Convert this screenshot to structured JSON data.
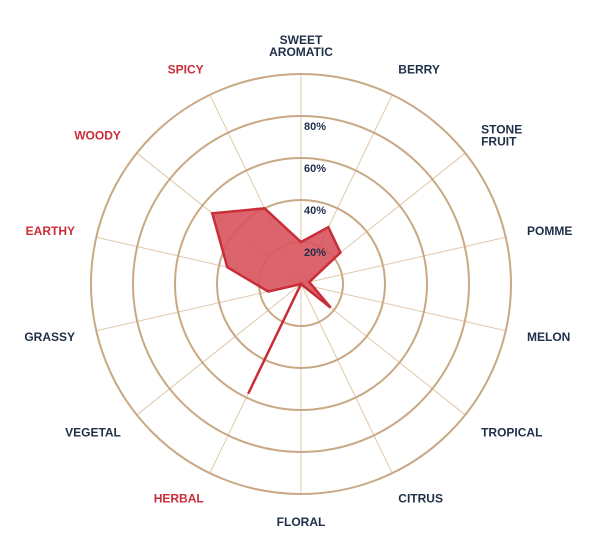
{
  "chart_data": {
    "type": "radar",
    "title": "",
    "axes": [
      {
        "label": [
          "SWEET",
          "AROMATIC"
        ],
        "value": 20,
        "highlight": false
      },
      {
        "label": [
          "BERRY"
        ],
        "value": 30,
        "highlight": false
      },
      {
        "label": [
          "STONE",
          "FRUIT"
        ],
        "value": 24,
        "highlight": false
      },
      {
        "label": [
          "POMME"
        ],
        "value": 4,
        "highlight": false
      },
      {
        "label": [
          "MELON"
        ],
        "value": 6,
        "highlight": false
      },
      {
        "label": [
          "TROPICAL"
        ],
        "value": 18,
        "highlight": false
      },
      {
        "label": [
          "CITRUS"
        ],
        "value": 0,
        "highlight": false
      },
      {
        "label": [
          "FLORAL"
        ],
        "value": 0,
        "highlight": false
      },
      {
        "label": [
          "HERBAL"
        ],
        "value": 58,
        "highlight": true
      },
      {
        "label": [
          "VEGETAL"
        ],
        "value": 0,
        "highlight": false
      },
      {
        "label": [
          "GRASSY"
        ],
        "value": 16,
        "highlight": false
      },
      {
        "label": [
          "EARTHY"
        ],
        "value": 36,
        "highlight": true
      },
      {
        "label": [
          "WOODY"
        ],
        "value": 54,
        "highlight": true
      },
      {
        "label": [
          "SPICY"
        ],
        "value": 40,
        "highlight": true
      }
    ],
    "rings": [
      20,
      40,
      60,
      80,
      100
    ],
    "tick_labels": [
      "20%",
      "40%",
      "60%",
      "80%"
    ],
    "rmax": 100,
    "grid": true,
    "colors": {
      "fill": "#d9575f",
      "stroke": "#c92d38",
      "grid": "#c9a884",
      "spoke": "#e0c8ad",
      "label": "#1f2f48",
      "highlight_label": "#c92d38"
    }
  }
}
